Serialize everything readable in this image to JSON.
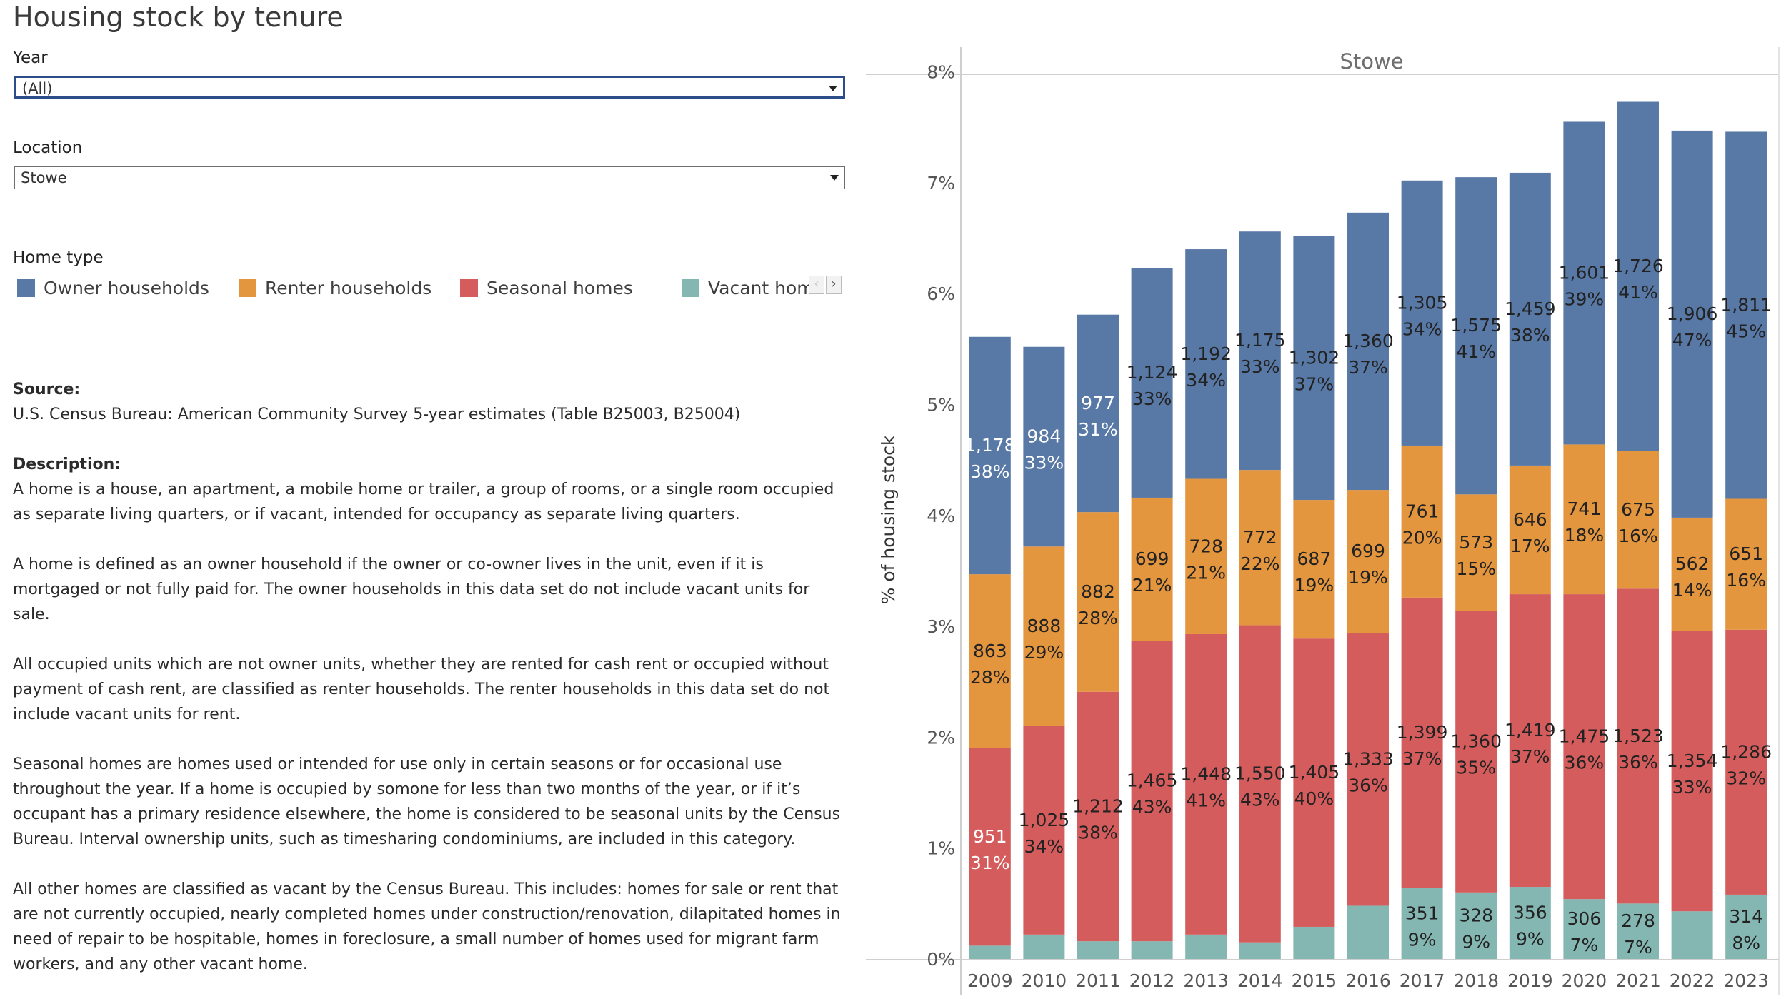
{
  "title": "Housing stock by tenure",
  "filters": {
    "year": {
      "label": "Year",
      "value": "(All)"
    },
    "location": {
      "label": "Location",
      "value": "Stowe"
    }
  },
  "legend": {
    "title": "Home type",
    "items": [
      {
        "label": "Owner households",
        "color": "#5878a6"
      },
      {
        "label": "Renter households",
        "color": "#e4963f"
      },
      {
        "label": "Seasonal homes",
        "color": "#d55c5c"
      },
      {
        "label": "Vacant homes",
        "color": "#84b6b2"
      }
    ],
    "nav_prev": "‹",
    "nav_next": "›"
  },
  "source": {
    "heading": "Source:",
    "text": "U.S. Census Bureau: American Community Survey 5-year estimates (Table B25003, B25004)"
  },
  "description": {
    "heading": "Description:",
    "paragraphs": [
      "A home is a house, an apartment, a mobile home or trailer, a group of rooms, or a single room occupied as separate living quarters, or if vacant, intended for occupancy as separate living quarters.",
      "A home is defined as an owner household if the owner or co-owner lives in the unit, even if it is mortgaged or not fully paid for. The owner households in this data set do not include vacant units for sale.",
      "All occupied units which are not owner units, whether they are rented for cash rent or occupied without payment of cash rent, are classified as renter households. The renter  households in this data set do not include vacant units for rent.",
      "Seasonal homes are homes used or intended for use only in certain seasons or for occasional use throughout the year. If a home is occupied by somone for less than two months of  the year, or if it’s occupant has a primary residence elsewhere, the home is considered to be seasonal units by the Census Bureau. Interval ownership units, such as timesharing condominiums, are included in this category.",
      "All other homes are classified as vacant by the Census Bureau. This includes: homes for sale or rent that are not currently occupied, nearly completed homes under construction/renovation, dilapitated homes in need of repair to be hospitable, homes in foreclosure,  a small number of homes used for migrant farm workers, and any other vacant home."
    ]
  },
  "chart_data": {
    "type": "bar",
    "stacked": true,
    "panel_title": "Stowe",
    "ylabel": "% of housing stock",
    "ylim": [
      0,
      8
    ],
    "yticks": [
      "0%",
      "1%",
      "2%",
      "3%",
      "4%",
      "5%",
      "6%",
      "7%",
      "8%"
    ],
    "categories": [
      "2009",
      "2010",
      "2011",
      "2012",
      "2013",
      "2014",
      "2015",
      "2016",
      "2017",
      "2018",
      "2019",
      "2020",
      "2021",
      "2022",
      "2023"
    ],
    "series": [
      {
        "name": "Vacant homes",
        "color": "#84b6b2",
        "values": [
          0.12,
          0.22,
          0.16,
          0.16,
          0.22,
          0.15,
          0.29,
          0.48,
          0.64,
          0.6,
          0.65,
          0.54,
          0.5,
          0.43,
          0.58
        ],
        "count_labels": [
          "",
          "",
          "",
          "",
          "",
          "",
          "",
          "",
          "351",
          "328",
          "356",
          "306",
          "278",
          "",
          "314"
        ],
        "pct_labels": [
          "",
          "",
          "",
          "",
          "",
          "",
          "",
          "",
          "9%",
          "9%",
          "9%",
          "7%",
          "7%",
          "",
          "8%"
        ]
      },
      {
        "name": "Seasonal homes",
        "color": "#d55c5c",
        "values": [
          1.78,
          1.88,
          2.25,
          2.71,
          2.71,
          2.86,
          2.6,
          2.46,
          2.62,
          2.54,
          2.64,
          2.75,
          2.84,
          2.53,
          2.39
        ],
        "count_labels": [
          "951",
          "1,025",
          "1,212",
          "1,465",
          "1,448",
          "1,550",
          "1,405",
          "1,333",
          "1,399",
          "1,360",
          "1,419",
          "1,475",
          "1,523",
          "1,354",
          "1,286"
        ],
        "pct_labels": [
          "31%",
          "34%",
          "38%",
          "43%",
          "41%",
          "43%",
          "40%",
          "36%",
          "37%",
          "35%",
          "37%",
          "36%",
          "36%",
          "33%",
          "32%"
        ]
      },
      {
        "name": "Renter households",
        "color": "#e4963f",
        "values": [
          1.57,
          1.62,
          1.62,
          1.29,
          1.4,
          1.4,
          1.25,
          1.29,
          1.37,
          1.05,
          1.16,
          1.35,
          1.24,
          1.02,
          1.18
        ],
        "count_labels": [
          "863",
          "888",
          "882",
          "699",
          "728",
          "772",
          "687",
          "699",
          "761",
          "573",
          "646",
          "741",
          "675",
          "562",
          "651"
        ],
        "pct_labels": [
          "28%",
          "29%",
          "28%",
          "21%",
          "21%",
          "22%",
          "19%",
          "19%",
          "20%",
          "15%",
          "17%",
          "18%",
          "16%",
          "14%",
          "16%"
        ]
      },
      {
        "name": "Owner households",
        "color": "#5878a6",
        "values": [
          2.14,
          1.8,
          1.78,
          2.07,
          2.07,
          2.15,
          2.38,
          2.5,
          2.39,
          2.86,
          2.64,
          2.91,
          3.15,
          3.49,
          3.31
        ],
        "count_labels": [
          "1,178",
          "984",
          "977",
          "1,124",
          "1,192",
          "1,175",
          "1,302",
          "1,360",
          "1,305",
          "1,575",
          "1,459",
          "1,601",
          "1,726",
          "1,906",
          "1,811"
        ],
        "pct_labels": [
          "38%",
          "33%",
          "31%",
          "33%",
          "34%",
          "33%",
          "37%",
          "37%",
          "34%",
          "41%",
          "38%",
          "39%",
          "41%",
          "47%",
          "45%"
        ]
      }
    ]
  }
}
